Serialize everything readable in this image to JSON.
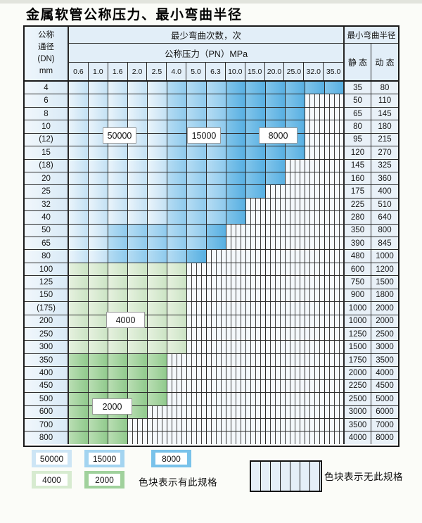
{
  "title": "金属软管公称压力、最小弯曲半径",
  "table": {
    "header": {
      "dn_label_lines": [
        "公称",
        "通径",
        "(DN)",
        "mm"
      ],
      "bend_cycles_label": "最少弯曲次数，次",
      "pressure_label": "公称压力（PN）MPa",
      "pressure_columns": [
        "0.6",
        "1.0",
        "1.6",
        "2.0",
        "2.5",
        "4.0",
        "5.0",
        "6.3",
        "10.0",
        "15.0",
        "20.0",
        "25.0",
        "32.0",
        "35.0"
      ],
      "radius_label": "最小弯曲半径",
      "static_label": "静 态",
      "dynamic_label": "动 态"
    },
    "shade_legend": {
      "L": "50000次区域-浅蓝",
      "M": "15000次区域-中蓝",
      "D": "8000次区域-深蓝",
      "g": "4000次区域-浅绿",
      "G": "2000次区域-深绿",
      "x": "无此规格-竖条纹"
    },
    "rows": [
      {
        "dn": "4",
        "cells": "LLLLLMMMDDDDDD",
        "static": "35",
        "dynamic": "80"
      },
      {
        "dn": "6",
        "cells": "LLLLLMMMDDDDxx",
        "static": "50",
        "dynamic": "110"
      },
      {
        "dn": "8",
        "cells": "LLLLLMMMDDDDxx",
        "static": "65",
        "dynamic": "145"
      },
      {
        "dn": "10",
        "cells": "LLLLLMMMDDDDxx",
        "static": "80",
        "dynamic": "180"
      },
      {
        "dn": "(12)",
        "cells": "LLLLLMMMDDDDxx",
        "static": "95",
        "dynamic": "215"
      },
      {
        "dn": "15",
        "cells": "LLLLLMMMDDDDxx",
        "static": "120",
        "dynamic": "270"
      },
      {
        "dn": "(18)",
        "cells": "LLLLLMMMDDDxxx",
        "static": "145",
        "dynamic": "325"
      },
      {
        "dn": "20",
        "cells": "LLLLLMMMDDDxxx",
        "static": "160",
        "dynamic": "360"
      },
      {
        "dn": "25",
        "cells": "LLLLLMMMDDxxxx",
        "static": "175",
        "dynamic": "400"
      },
      {
        "dn": "32",
        "cells": "LLLLLMMMDxxxxx",
        "static": "225",
        "dynamic": "510"
      },
      {
        "dn": "40",
        "cells": "LLLLLMMMDxxxxx",
        "static": "280",
        "dynamic": "640"
      },
      {
        "dn": "50",
        "cells": "LLMMMMMDxxxxxx",
        "static": "350",
        "dynamic": "800"
      },
      {
        "dn": "65",
        "cells": "LLMMMMMDxxxxxx",
        "static": "390",
        "dynamic": "845"
      },
      {
        "dn": "80",
        "cells": "LLMMMMDxxxxxxx",
        "static": "480",
        "dynamic": "1000"
      },
      {
        "dn": "100",
        "cells": "ggggggxxxxxxxx",
        "static": "600",
        "dynamic": "1200"
      },
      {
        "dn": "125",
        "cells": "ggggggxxxxxxxx",
        "static": "750",
        "dynamic": "1500"
      },
      {
        "dn": "150",
        "cells": "ggggggxxxxxxxx",
        "static": "900",
        "dynamic": "1800"
      },
      {
        "dn": "(175)",
        "cells": "ggggggxxxxxxxx",
        "static": "1000",
        "dynamic": "2000"
      },
      {
        "dn": "200",
        "cells": "ggggggxxxxxxxx",
        "static": "1000",
        "dynamic": "2000"
      },
      {
        "dn": "250",
        "cells": "ggggggxxxxxxxx",
        "static": "1250",
        "dynamic": "2500"
      },
      {
        "dn": "300",
        "cells": "ggggggxxxxxxxx",
        "static": "1500",
        "dynamic": "3000"
      },
      {
        "dn": "350",
        "cells": "GGGGGxxxxxxxxx",
        "static": "1750",
        "dynamic": "3500"
      },
      {
        "dn": "400",
        "cells": "GGGGGxxxxxxxxx",
        "static": "2000",
        "dynamic": "4000"
      },
      {
        "dn": "450",
        "cells": "GGGGGxxxxxxxxx",
        "static": "2250",
        "dynamic": "4500"
      },
      {
        "dn": "500",
        "cells": "GGGGGxxxxxxxxx",
        "static": "2500",
        "dynamic": "5000"
      },
      {
        "dn": "600",
        "cells": "GGGGxxxxxxxxxx",
        "static": "3000",
        "dynamic": "6000"
      },
      {
        "dn": "700",
        "cells": "GGGxxxxxxxxxxx",
        "static": "3500",
        "dynamic": "7000"
      },
      {
        "dn": "800",
        "cells": "GGGxxxxxxxxxxx",
        "static": "4000",
        "dynamic": "8000"
      }
    ],
    "region_labels": {
      "blue_light": "50000",
      "blue_medium": "15000",
      "blue_dark": "8000",
      "green_light": "4000",
      "green_dark": "2000"
    }
  },
  "legend": {
    "swatches": [
      {
        "label": "50000",
        "color": "#cde5f5"
      },
      {
        "label": "15000",
        "color": "#a3d4f0"
      },
      {
        "label": "8000",
        "color": "#79c2ea"
      },
      {
        "label": "4000",
        "color": "#d7ebd0"
      },
      {
        "label": "2000",
        "color": "#a0d19c"
      }
    ],
    "has_spec_note": "色块表示有此规格",
    "no_spec_note": "色块表示无此规格"
  },
  "colors": {
    "light_blue": "#d4e8f7",
    "medium_blue": "#a0d2f0",
    "dark_blue": "#6bbae6",
    "light_green": "#d8ebd1",
    "dark_green": "#a0d19c",
    "header_bg": "#e2eef8",
    "grid": "#2b2b2b"
  }
}
